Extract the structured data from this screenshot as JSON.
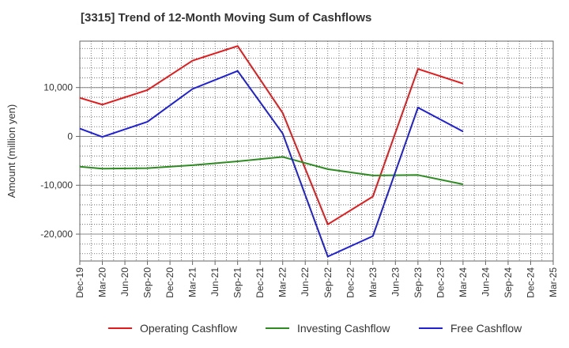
{
  "title": "[3315]  Trend of 12-Month Moving Sum of Cashflows",
  "chart_data": {
    "type": "line",
    "title": "[3315]  Trend of 12-Month Moving Sum of Cashflows",
    "xlabel": "",
    "ylabel": "Amount (million yen)",
    "ylim": [
      -25500,
      19500
    ],
    "grid": true,
    "legend_position": "bottom",
    "categories": [
      "Dec-19",
      "Mar-20",
      "Jun-20",
      "Sep-20",
      "Dec-20",
      "Mar-21",
      "Jun-21",
      "Sep-21",
      "Dec-21",
      "Mar-22",
      "Jun-22",
      "Sep-22",
      "Dec-22",
      "Mar-23",
      "Jun-23",
      "Sep-23",
      "Dec-23",
      "Mar-24",
      "Jun-24",
      "Sep-24",
      "Dec-24",
      "Mar-25"
    ],
    "y_ticks": [
      10000,
      0,
      -10000,
      -20000
    ],
    "y_tick_labels": [
      "10,000",
      "0",
      "-10,000",
      "-20,000"
    ],
    "series": [
      {
        "name": "Operating Cashflow",
        "color": "#e31a1c",
        "values": [
          7900,
          6500,
          null,
          9500,
          null,
          15500,
          null,
          18500,
          null,
          4800,
          null,
          -18000,
          null,
          -12300,
          null,
          13800,
          null,
          10800,
          null,
          null,
          null,
          null
        ]
      },
      {
        "name": "Investing Cashflow",
        "color": "#2e8b22",
        "values": [
          -6200,
          -6600,
          null,
          -6500,
          null,
          -5900,
          null,
          -5100,
          null,
          -4200,
          null,
          -6700,
          null,
          -8000,
          null,
          -7900,
          null,
          -9800,
          null,
          null,
          null,
          null
        ]
      },
      {
        "name": "Free Cashflow",
        "color": "#1f1fd6",
        "values": [
          1600,
          -100,
          null,
          3000,
          null,
          9700,
          null,
          13400,
          null,
          600,
          null,
          -24600,
          null,
          -20400,
          null,
          5900,
          null,
          1000,
          null,
          null,
          null,
          null
        ]
      }
    ]
  }
}
